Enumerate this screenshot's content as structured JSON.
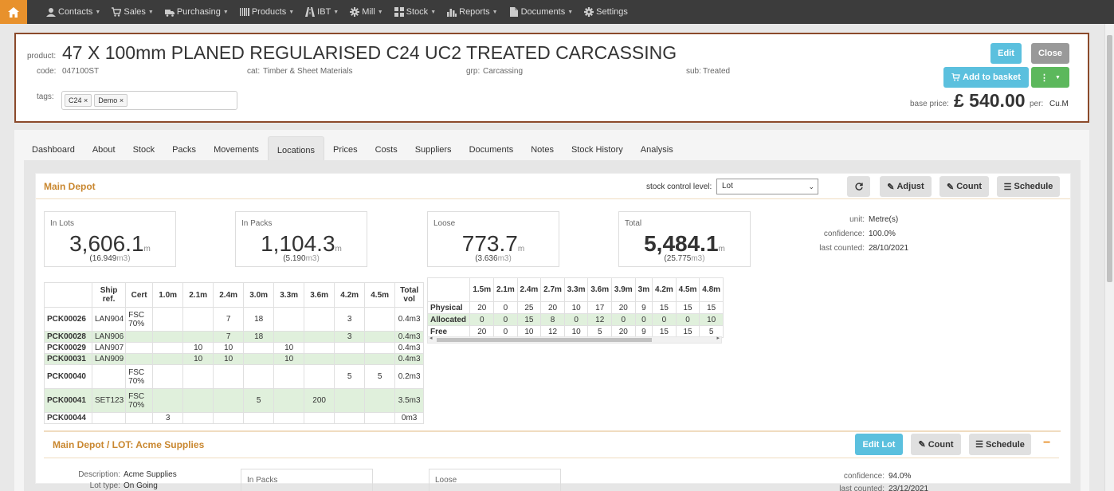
{
  "nav": {
    "items": [
      {
        "label": "Contacts",
        "icon": "user-icon"
      },
      {
        "label": "Sales",
        "icon": "cart-icon"
      },
      {
        "label": "Purchasing",
        "icon": "truck-icon"
      },
      {
        "label": "Products",
        "icon": "barcode-icon"
      },
      {
        "label": "IBT",
        "icon": "road-icon"
      },
      {
        "label": "Mill",
        "icon": "cog-icon"
      },
      {
        "label": "Stock",
        "icon": "grid-icon"
      },
      {
        "label": "Reports",
        "icon": "bar-chart-icon"
      },
      {
        "label": "Documents",
        "icon": "file-icon"
      },
      {
        "label": "Settings",
        "icon": "gear-icon"
      }
    ]
  },
  "product": {
    "label": "product:",
    "title": "47 X 100mm PLANED REGULARISED C24 UC2 TREATED CARCASSING",
    "code_label": "code:",
    "code": "047100ST",
    "cat_label": "cat:",
    "cat": "Timber & Sheet Materials",
    "grp_label": "grp:",
    "grp": "Carcassing",
    "sub_label": "sub:",
    "sub": "Treated",
    "tags_label": "tags:",
    "tags": [
      "C24",
      "Demo"
    ],
    "edit": "Edit",
    "close": "Close",
    "add_to_basket": "Add to basket",
    "base_price_label": "base price:",
    "base_price": "£ 540.00",
    "per_label": "per:",
    "per": "Cu.M"
  },
  "tabs": [
    "Dashboard",
    "About",
    "Stock",
    "Packs",
    "Movements",
    "Locations",
    "Prices",
    "Costs",
    "Suppliers",
    "Documents",
    "Notes",
    "Stock History",
    "Analysis"
  ],
  "depot": {
    "title": "Main Depot",
    "scl_label": "stock control level:",
    "scl_value": "Lot",
    "adjust": "Adjust",
    "count": "Count",
    "schedule": "Schedule",
    "summaries": [
      {
        "title": "In Lots",
        "value": "3,606.1",
        "unit": "m",
        "sub": "(16.949",
        "sub_unit": "m3)"
      },
      {
        "title": "In Packs",
        "value": "1,104.3",
        "unit": "m",
        "sub": "(5.190",
        "sub_unit": "m3)"
      },
      {
        "title": "Loose",
        "value": "773.7",
        "unit": "m",
        "sub": "(3.636",
        "sub_unit": "m3)"
      },
      {
        "title": "Total",
        "value": "5,484.1",
        "unit": "m",
        "sub": "(25.775",
        "sub_unit": "m3)"
      }
    ],
    "info": [
      {
        "k": "unit:",
        "v": "Metre(s)"
      },
      {
        "k": "confidence:",
        "v": "100.0%"
      },
      {
        "k": "last counted:",
        "v": "28/10/2021"
      }
    ]
  },
  "packs": {
    "headers": [
      "",
      "Ship ref.",
      "Cert",
      "1.0m",
      "2.1m",
      "2.4m",
      "3.0m",
      "3.3m",
      "3.6m",
      "4.2m",
      "4.5m",
      "Total vol"
    ],
    "rows": [
      {
        "c": [
          "PCK00026",
          "LAN904",
          "FSC 70%",
          "",
          "",
          "7",
          "18",
          "",
          "",
          "3",
          "",
          "0.4m3"
        ],
        "g": false,
        "h": 30
      },
      {
        "c": [
          "PCK00028",
          "LAN906",
          "",
          "",
          "",
          "7",
          "18",
          "",
          "",
          "3",
          "",
          "0.4m3"
        ],
        "g": true,
        "h": 14
      },
      {
        "c": [
          "PCK00029",
          "LAN907",
          "",
          "",
          "10",
          "10",
          "",
          "10",
          "",
          "",
          "",
          "0.4m3"
        ],
        "g": false,
        "h": 14
      },
      {
        "c": [
          "PCK00031",
          "LAN909",
          "",
          "",
          "10",
          "10",
          "",
          "10",
          "",
          "",
          "",
          "0.4m3"
        ],
        "g": true,
        "h": 14
      },
      {
        "c": [
          "PCK00040",
          "",
          "FSC 70%",
          "",
          "",
          "",
          "",
          "",
          "",
          "5",
          "5",
          "0.2m3"
        ],
        "g": false,
        "h": 30
      },
      {
        "c": [
          "PCK00041",
          "SET123",
          "FSC 70%",
          "",
          "",
          "",
          "5",
          "",
          "200",
          "",
          "",
          "3.5m3"
        ],
        "g": true,
        "h": 30
      },
      {
        "c": [
          "PCK00044",
          "",
          "",
          "3",
          "",
          "",
          "",
          "",
          "",
          "",
          "",
          "0m3"
        ],
        "g": false,
        "h": 14
      }
    ]
  },
  "stock": {
    "headers": [
      "",
      "1.5m",
      "2.1m",
      "2.4m",
      "2.7m",
      "3.3m",
      "3.6m",
      "3.9m",
      "3m",
      "4.2m",
      "4.5m",
      "4.8m"
    ],
    "rows": [
      {
        "c": [
          "Physical",
          "20",
          "0",
          "25",
          "20",
          "10",
          "17",
          "20",
          "9",
          "15",
          "15",
          "15"
        ],
        "g": false
      },
      {
        "c": [
          "Allocated",
          "0",
          "0",
          "15",
          "8",
          "0",
          "12",
          "0",
          "0",
          "0",
          "0",
          "10"
        ],
        "g": true
      },
      {
        "c": [
          "Free",
          "20",
          "0",
          "10",
          "12",
          "10",
          "5",
          "20",
          "9",
          "15",
          "15",
          "5"
        ],
        "g": false
      }
    ]
  },
  "lot": {
    "title": "Main Depot / LOT: Acme Supplies",
    "edit_lot": "Edit Lot",
    "count": "Count",
    "schedule": "Schedule",
    "desc_label": "Description:",
    "desc": "Acme Supplies",
    "type_label": "Lot type:",
    "type": "On Going",
    "in_packs": "In Packs",
    "loose": "Loose",
    "confidence_label": "confidence:",
    "confidence": "94.0%",
    "last_counted_label": "last counted:",
    "last_counted": "23/12/2021"
  },
  "colors": {
    "accent": "#e8912c",
    "brand_border": "#8b4a2b",
    "info_btn": "#5bc0de",
    "success_btn": "#5cb85c",
    "section_title": "#c9872f"
  }
}
